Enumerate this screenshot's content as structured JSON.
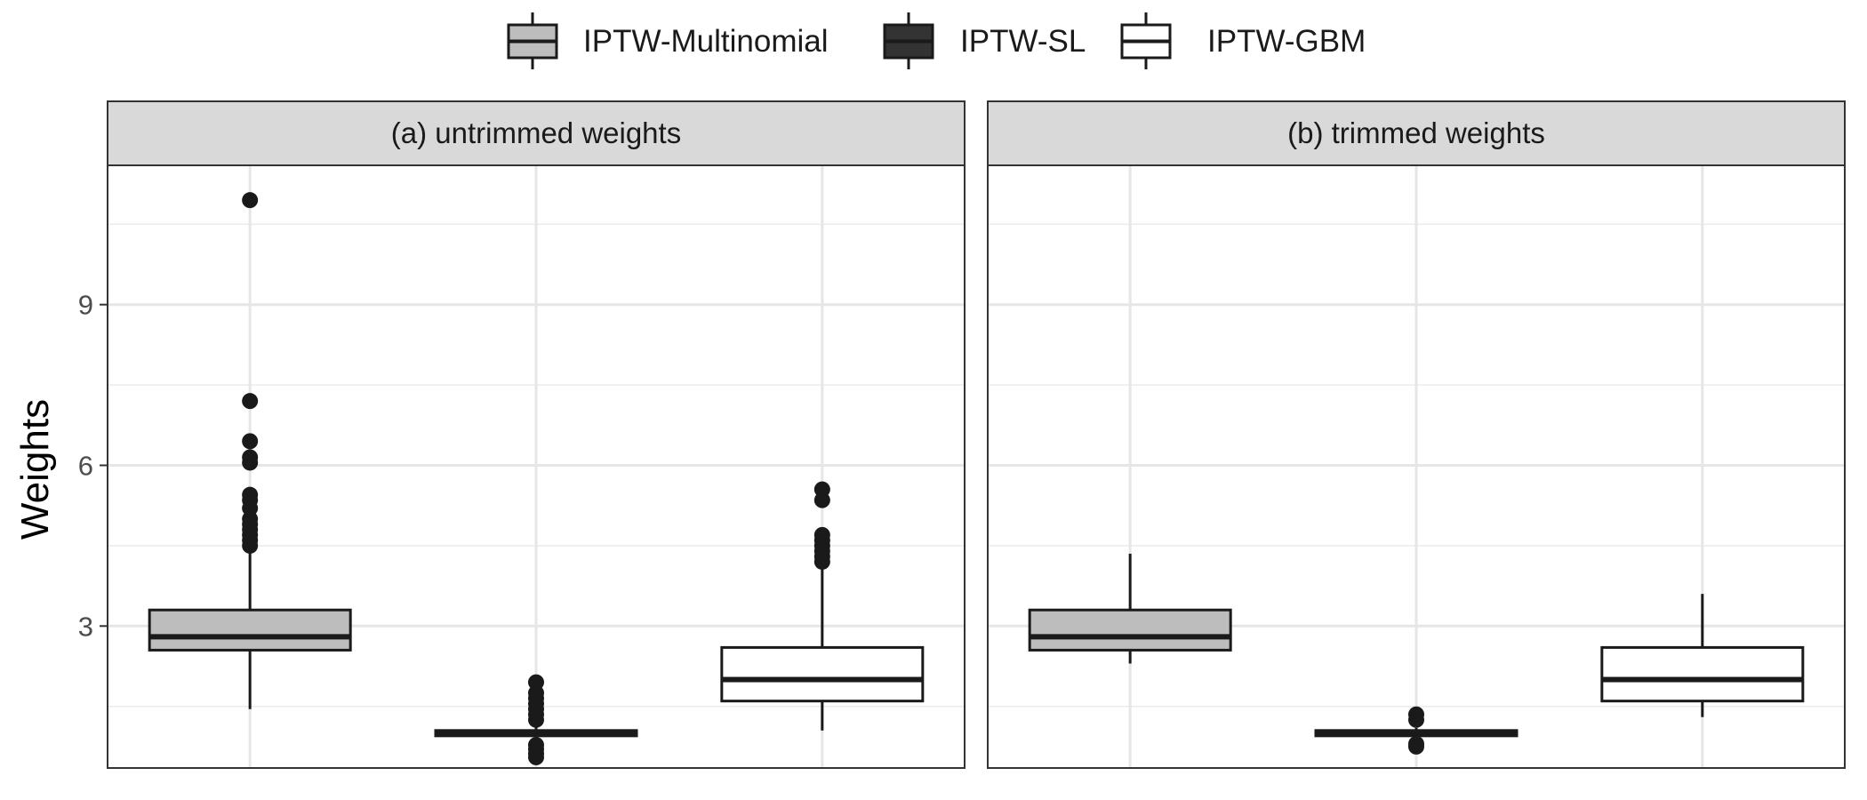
{
  "chart_data": {
    "type": "boxplot",
    "ylabel": "Weights",
    "y_ticks": [
      3,
      6,
      9
    ],
    "ylim": [
      0.35,
      11.6
    ],
    "grid": true,
    "legend_position": "top",
    "series": [
      {
        "name": "IPTW-Multinomial",
        "fill": "#bdbdbd"
      },
      {
        "name": "IPTW-SL",
        "fill": "#333333"
      },
      {
        "name": "IPTW-GBM",
        "fill": "#ffffff"
      }
    ],
    "panels": [
      {
        "title": "(a) untrimmed weights",
        "boxes": [
          {
            "series": "IPTW-Multinomial",
            "whisker_low": 1.45,
            "q1": 2.55,
            "median": 2.8,
            "q3": 3.3,
            "whisker_high": 4.45,
            "outliers": [
              4.5,
              4.6,
              4.7,
              4.8,
              4.9,
              5.0,
              5.2,
              5.35,
              5.45,
              6.05,
              6.15,
              6.45,
              7.2,
              10.95
            ]
          },
          {
            "series": "IPTW-SL",
            "whisker_low": 0.85,
            "q1": 0.95,
            "median": 1.0,
            "q3": 1.05,
            "whisker_high": 1.15,
            "outliers": [
              0.55,
              0.62,
              0.7,
              0.78,
              1.25,
              1.35,
              1.45,
              1.55,
              1.65,
              1.75,
              1.95
            ]
          },
          {
            "series": "IPTW-GBM",
            "whisker_low": 1.05,
            "q1": 1.6,
            "median": 2.0,
            "q3": 2.6,
            "whisker_high": 4.1,
            "outliers": [
              4.2,
              4.3,
              4.4,
              4.5,
              4.6,
              4.7,
              5.35,
              5.55
            ]
          }
        ]
      },
      {
        "title": "(b) trimmed weights",
        "boxes": [
          {
            "series": "IPTW-Multinomial",
            "whisker_low": 2.3,
            "q1": 2.55,
            "median": 2.8,
            "q3": 3.3,
            "whisker_high": 4.35,
            "outliers": []
          },
          {
            "series": "IPTW-SL",
            "whisker_low": 0.9,
            "q1": 0.95,
            "median": 1.0,
            "q3": 1.05,
            "whisker_high": 1.1,
            "outliers": [
              0.75,
              0.8,
              1.25,
              1.35
            ]
          },
          {
            "series": "IPTW-GBM",
            "whisker_low": 1.3,
            "q1": 1.6,
            "median": 2.0,
            "q3": 2.6,
            "whisker_high": 3.6,
            "outliers": []
          }
        ]
      }
    ]
  }
}
